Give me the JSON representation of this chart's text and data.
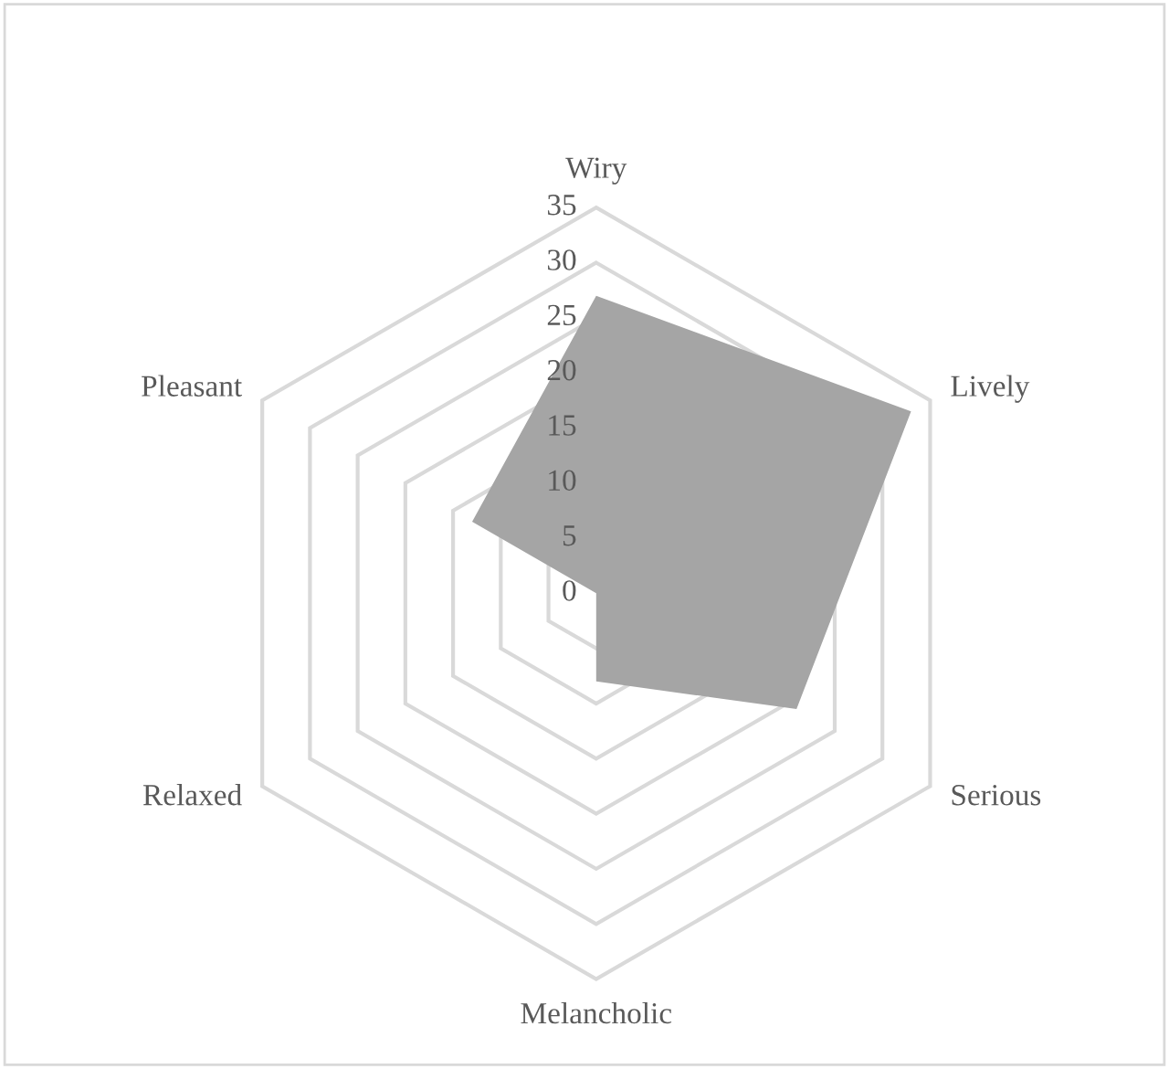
{
  "chart_data": {
    "type": "radar",
    "categories": [
      "Wiry",
      "Lively",
      "Serious",
      "Melancholic",
      "Relaxed",
      "Pleasant"
    ],
    "series": [
      {
        "color": "#a5a5a5",
        "values": [
          27,
          33,
          21,
          8,
          0,
          13
        ]
      }
    ],
    "ylim": [
      0,
      35
    ],
    "yticks": [
      0,
      5,
      10,
      15,
      20,
      25,
      30,
      35
    ],
    "grid": true
  }
}
